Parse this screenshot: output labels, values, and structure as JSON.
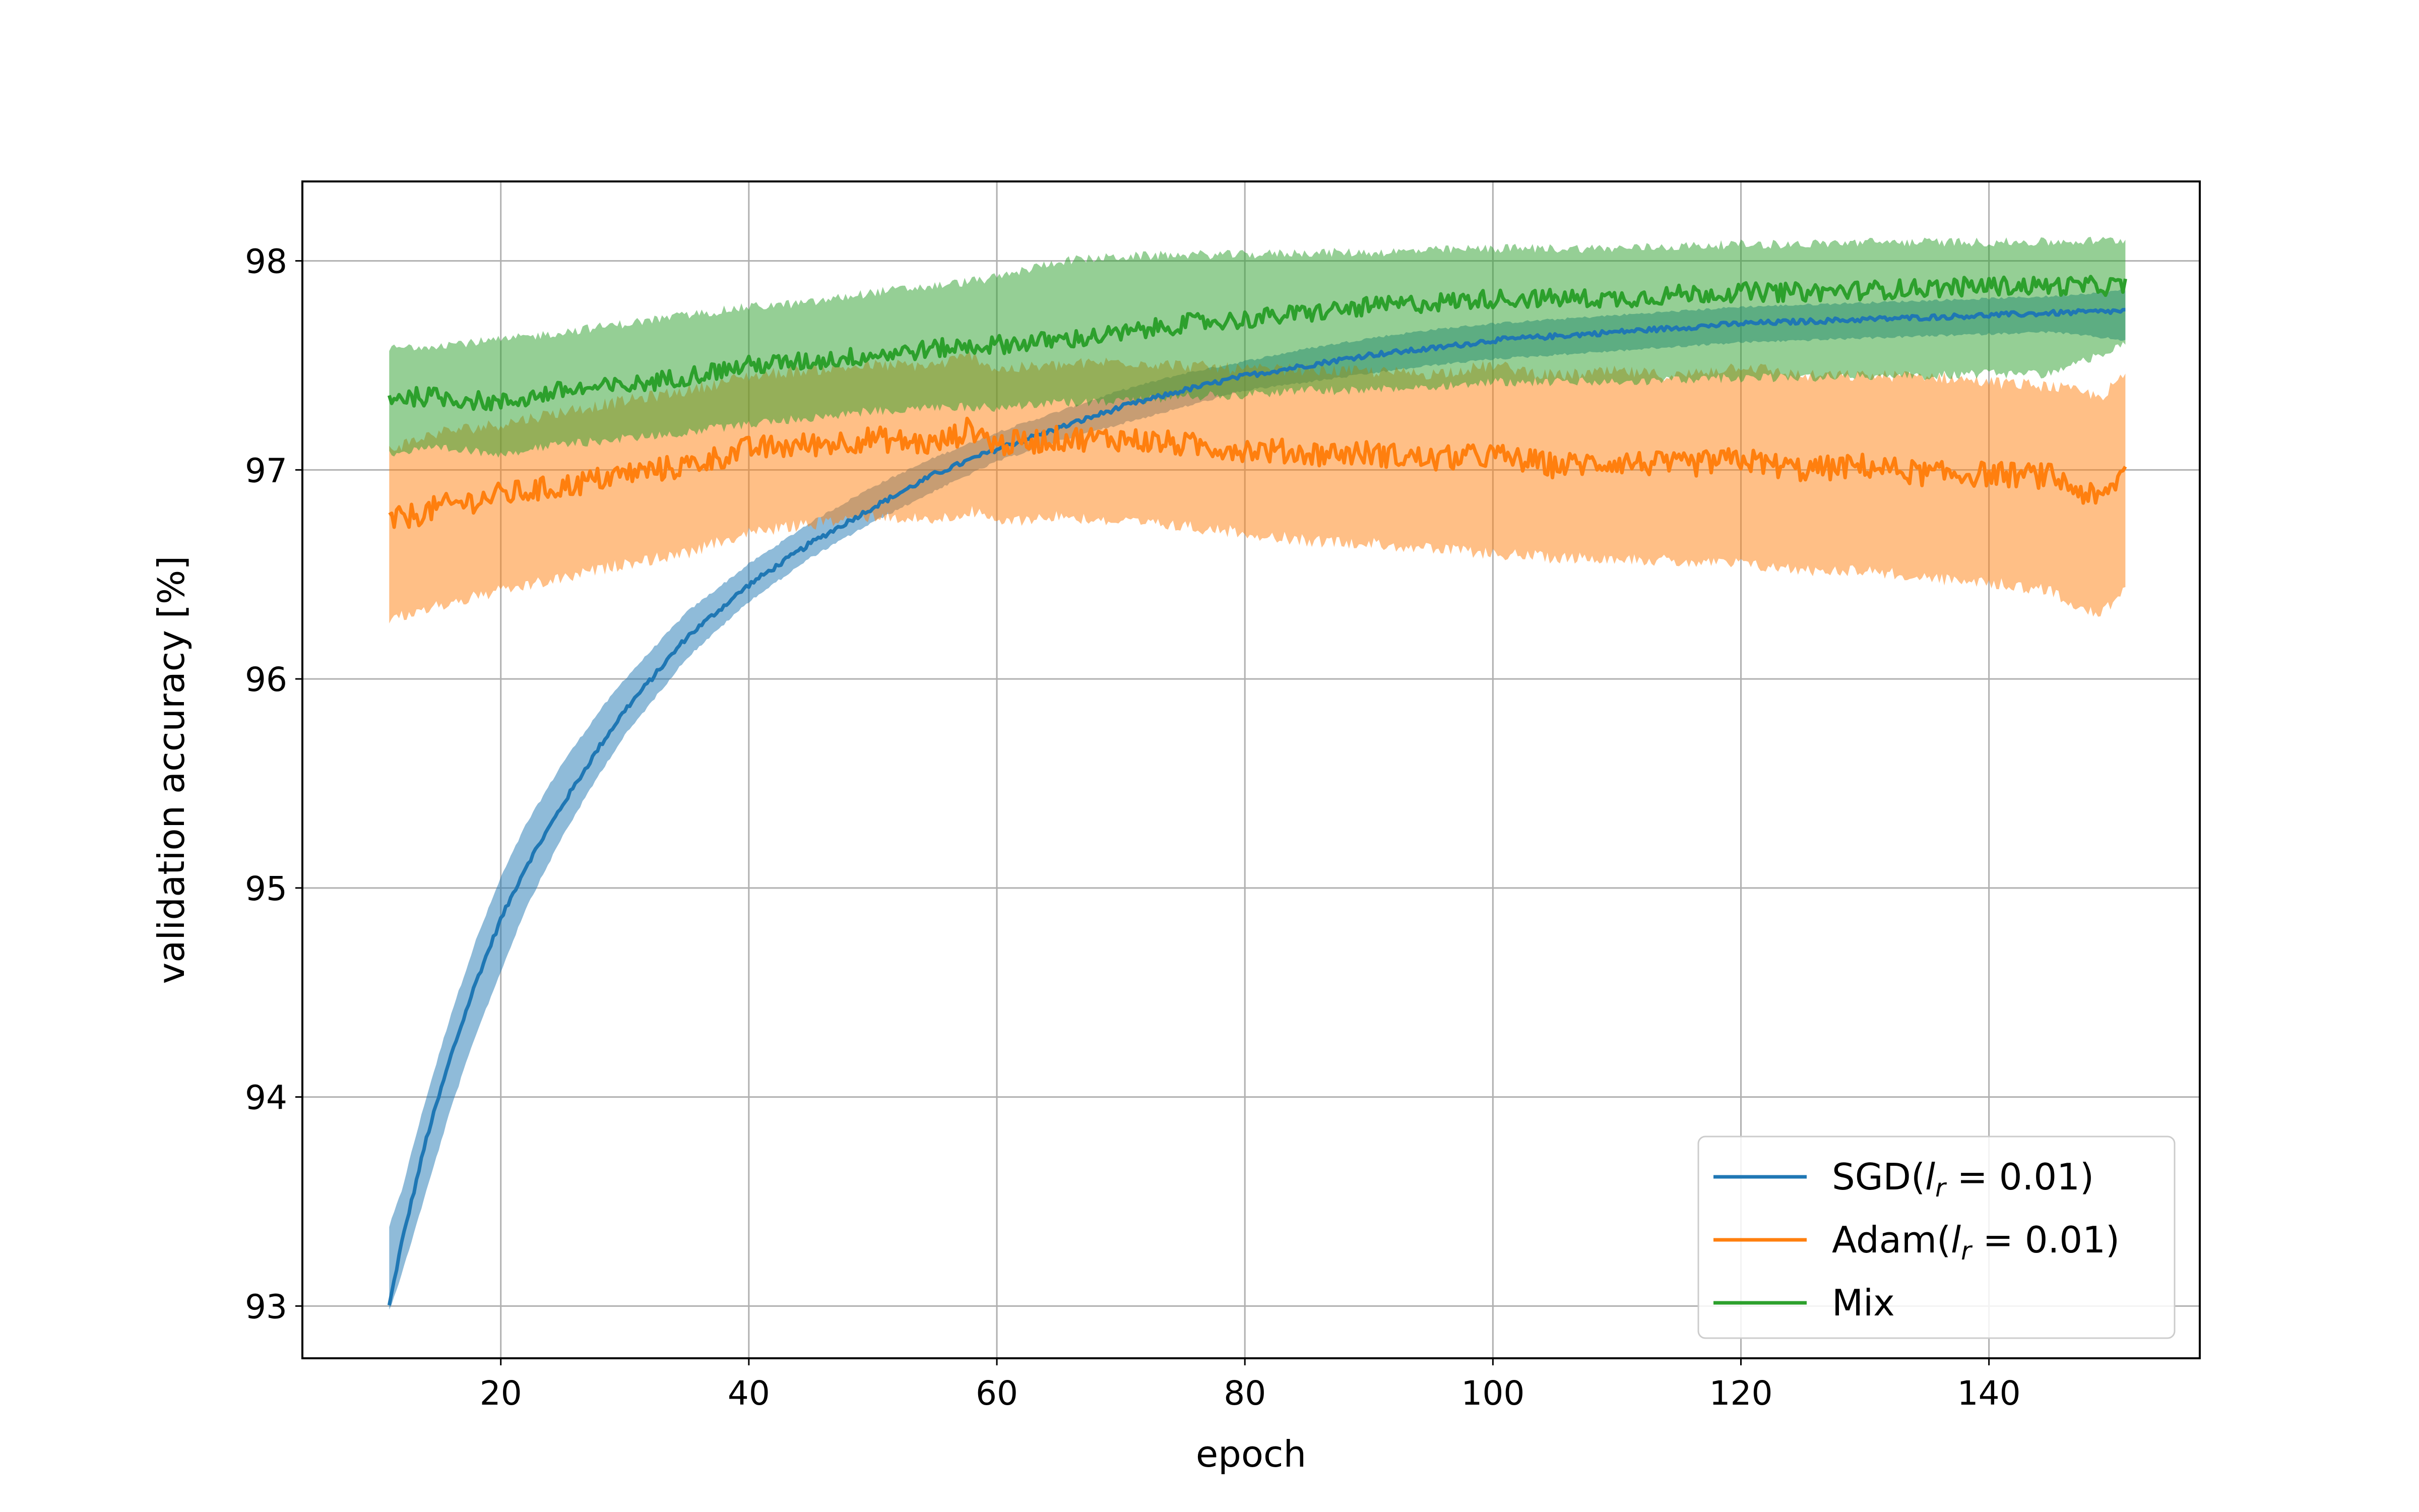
{
  "chart_data": {
    "type": "line",
    "title": "",
    "xlabel": "epoch",
    "ylabel": "validation accuracy [%]",
    "xlim": [
      4,
      157
    ],
    "ylim": [
      92.75,
      98.38
    ],
    "x_ticks": [
      20,
      40,
      60,
      80,
      100,
      120,
      140
    ],
    "y_ticks": [
      93,
      94,
      95,
      96,
      97,
      98
    ],
    "grid": true,
    "legend_position": "bottom-right",
    "series": [
      {
        "name": "SGD(l_r = 0.01)",
        "legend": {
          "prefix": "SGD(",
          "var": "l",
          "sub": "r",
          "suffix": " = 0.01)"
        },
        "color": "#1f77b4",
        "band_color": "#1f77b4",
        "x": [
          11,
          12,
          13,
          14,
          15,
          16,
          18,
          20,
          22,
          25,
          28,
          30,
          35,
          40,
          45,
          50,
          55,
          60,
          65,
          70,
          75,
          80,
          85,
          90,
          95,
          100,
          105,
          110,
          115,
          120,
          125,
          130,
          135,
          140,
          145,
          151
        ],
        "mean": [
          93.0,
          93.3,
          93.55,
          93.8,
          94.0,
          94.2,
          94.55,
          94.85,
          95.1,
          95.4,
          95.68,
          95.85,
          96.2,
          96.45,
          96.65,
          96.82,
          96.98,
          97.1,
          97.2,
          97.3,
          97.38,
          97.45,
          97.5,
          97.55,
          97.58,
          97.62,
          97.64,
          97.66,
          97.68,
          97.7,
          97.71,
          97.72,
          97.73,
          97.74,
          97.75,
          97.76
        ],
        "lower": [
          92.98,
          93.15,
          93.35,
          93.55,
          93.75,
          93.95,
          94.3,
          94.6,
          94.9,
          95.25,
          95.55,
          95.73,
          96.1,
          96.37,
          96.58,
          96.75,
          96.9,
          97.04,
          97.14,
          97.22,
          97.3,
          97.38,
          97.42,
          97.46,
          97.5,
          97.53,
          97.55,
          97.57,
          97.59,
          97.61,
          97.62,
          97.63,
          97.64,
          97.65,
          97.66,
          97.62
        ],
        "upper": [
          93.38,
          93.55,
          93.78,
          94.0,
          94.2,
          94.4,
          94.75,
          95.05,
          95.3,
          95.6,
          95.85,
          96.0,
          96.32,
          96.55,
          96.75,
          96.92,
          97.06,
          97.18,
          97.28,
          97.38,
          97.46,
          97.52,
          97.58,
          97.63,
          97.67,
          97.7,
          97.72,
          97.74,
          97.76,
          97.78,
          97.79,
          97.8,
          97.81,
          97.82,
          97.83,
          97.86
        ]
      },
      {
        "name": "Adam(l_r = 0.01)",
        "legend": {
          "prefix": "Adam(",
          "var": "l",
          "sub": "r",
          "suffix": " = 0.01)"
        },
        "color": "#ff7f0e",
        "band_color": "#ff7f0e",
        "x": [
          11,
          15,
          20,
          25,
          30,
          35,
          40,
          45,
          50,
          55,
          58,
          60,
          65,
          70,
          75,
          80,
          85,
          90,
          95,
          100,
          105,
          110,
          115,
          120,
          125,
          130,
          135,
          140,
          145,
          149,
          151
        ],
        "mean": [
          96.75,
          96.82,
          96.88,
          96.92,
          96.98,
          97.02,
          97.1,
          97.12,
          97.15,
          97.12,
          97.2,
          97.12,
          97.15,
          97.15,
          97.12,
          97.1,
          97.08,
          97.08,
          97.05,
          97.07,
          97.02,
          97.04,
          97.02,
          97.05,
          97.0,
          97.02,
          96.98,
          96.98,
          96.97,
          96.85,
          97.0
        ],
        "lower": [
          96.28,
          96.35,
          96.42,
          96.48,
          96.55,
          96.6,
          96.7,
          96.74,
          96.78,
          96.76,
          96.8,
          96.75,
          96.78,
          96.75,
          96.73,
          96.7,
          96.66,
          96.65,
          96.62,
          96.6,
          96.58,
          96.58,
          96.56,
          96.55,
          96.52,
          96.52,
          96.48,
          96.46,
          96.42,
          96.3,
          96.45
        ],
        "upper": [
          97.1,
          97.18,
          97.22,
          97.28,
          97.33,
          97.38,
          97.45,
          97.48,
          97.5,
          97.5,
          97.55,
          97.48,
          97.5,
          97.52,
          97.5,
          97.48,
          97.48,
          97.47,
          97.46,
          97.5,
          97.45,
          97.47,
          97.45,
          97.5,
          97.45,
          97.45,
          97.45,
          97.42,
          97.4,
          97.35,
          97.45
        ]
      },
      {
        "name": "Mix",
        "legend": {
          "prefix": "Mix",
          "var": "",
          "sub": "",
          "suffix": ""
        },
        "color": "#2ca02c",
        "band_color": "#2ca02c",
        "x": [
          11,
          15,
          20,
          25,
          30,
          35,
          40,
          45,
          50,
          55,
          60,
          65,
          70,
          75,
          80,
          85,
          90,
          95,
          100,
          105,
          110,
          115,
          120,
          125,
          130,
          135,
          140,
          145,
          151
        ],
        "mean": [
          97.35,
          97.35,
          97.32,
          97.38,
          97.4,
          97.45,
          97.5,
          97.52,
          97.55,
          97.58,
          97.6,
          97.62,
          97.65,
          97.7,
          97.72,
          97.75,
          97.78,
          97.8,
          97.82,
          97.82,
          97.82,
          97.84,
          97.85,
          97.85,
          97.86,
          97.87,
          97.88,
          97.88,
          97.88
        ],
        "lower": [
          97.08,
          97.1,
          97.08,
          97.12,
          97.15,
          97.18,
          97.22,
          97.25,
          97.28,
          97.3,
          97.3,
          97.32,
          97.33,
          97.35,
          97.36,
          97.38,
          97.38,
          97.4,
          97.42,
          97.42,
          97.42,
          97.43,
          97.44,
          97.44,
          97.45,
          97.45,
          97.46,
          97.46,
          97.6
        ],
        "upper": [
          97.58,
          97.6,
          97.62,
          97.66,
          97.7,
          97.74,
          97.78,
          97.8,
          97.85,
          97.88,
          97.92,
          98.0,
          98.02,
          98.03,
          98.03,
          98.04,
          98.04,
          98.05,
          98.06,
          98.06,
          98.06,
          98.07,
          98.08,
          98.08,
          98.09,
          98.09,
          98.09,
          98.09,
          98.1
        ]
      }
    ]
  }
}
